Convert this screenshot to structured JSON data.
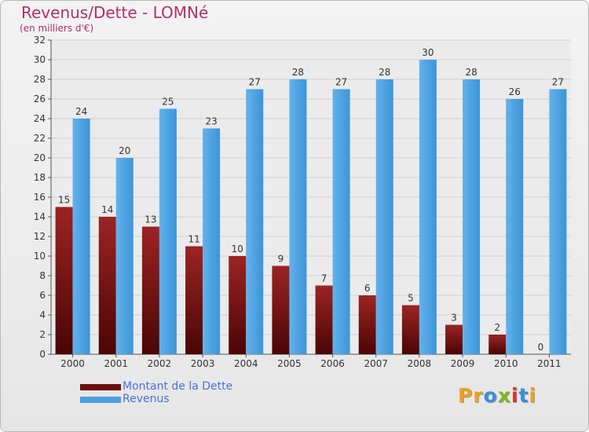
{
  "header": {
    "title": "Revenus/Dette - LOMNé",
    "subtitle": "(en milliers d'€)"
  },
  "colors": {
    "dette": "#7a1010",
    "revenus": "#4a9fe0",
    "title": "#b0306a",
    "legend_text": "#4a6ee0"
  },
  "legend": {
    "items": [
      {
        "label": "Montant de la Dette",
        "color": "#6b0d0d"
      },
      {
        "label": "Revenus",
        "color": "#4a9fe0"
      }
    ]
  },
  "logo": {
    "letters": [
      {
        "ch": "P",
        "color": "#f0a020"
      },
      {
        "ch": "r",
        "color": "#f0a020"
      },
      {
        "ch": "o",
        "color": "#3a8fd8"
      },
      {
        "ch": "x",
        "color": "#7cb820"
      },
      {
        "ch": "i",
        "color": "#e03030"
      },
      {
        "ch": "t",
        "color": "#3a8fd8"
      },
      {
        "ch": "i",
        "color": "#f0a020"
      }
    ]
  },
  "chart_data": {
    "type": "bar",
    "title": "Revenus/Dette - LOMNé",
    "subtitle": "(en milliers d'€)",
    "categories": [
      "2000",
      "2001",
      "2002",
      "2003",
      "2004",
      "2005",
      "2006",
      "2007",
      "2008",
      "2009",
      "2010",
      "2011"
    ],
    "series": [
      {
        "name": "Montant de la Dette",
        "values": [
          15,
          14,
          13,
          11,
          10,
          9,
          7,
          6,
          5,
          3,
          2,
          0
        ]
      },
      {
        "name": "Revenus",
        "values": [
          24,
          20,
          25,
          23,
          27,
          28,
          27,
          28,
          30,
          28,
          26,
          27
        ]
      }
    ],
    "ylim": [
      0,
      32
    ],
    "yticks": [
      0,
      2,
      4,
      6,
      8,
      10,
      12,
      14,
      16,
      18,
      20,
      22,
      24,
      26,
      28,
      30,
      32
    ],
    "grid": true,
    "legend_position": "bottom-left"
  }
}
